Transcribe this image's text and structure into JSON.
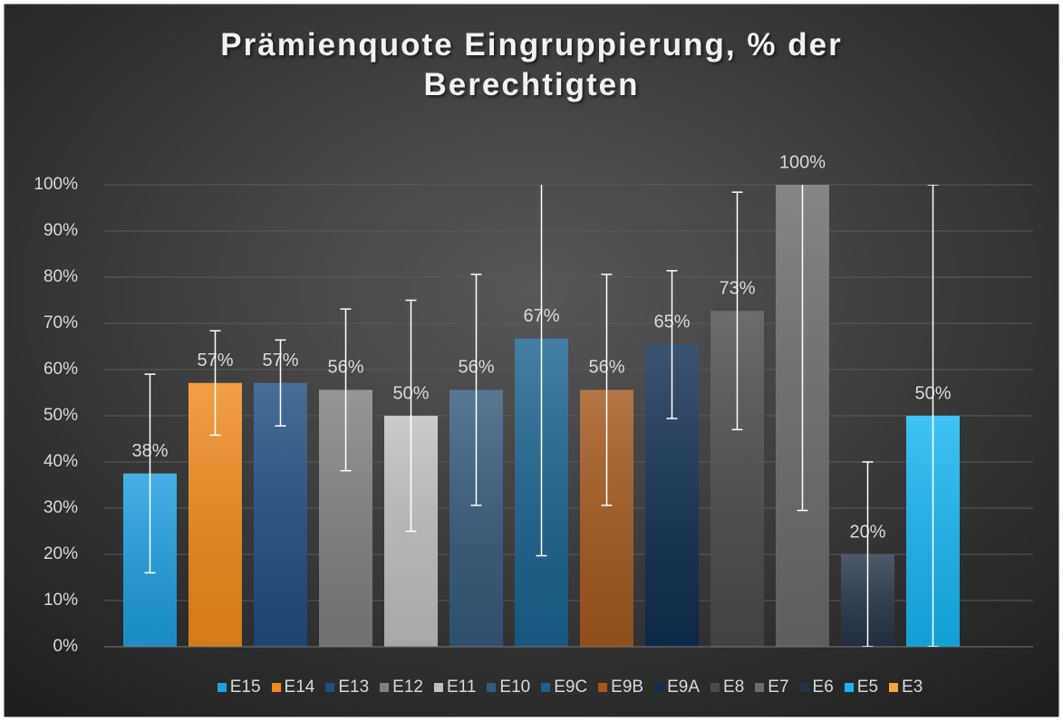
{
  "chart_data": {
    "type": "bar",
    "title": "Prämienquote Eingruppierung, % der Berechtigten",
    "series": [
      {
        "name": "E15",
        "color": "#1e9fe0",
        "values": [
          37.5
        ],
        "value_labels": [
          "38%"
        ],
        "errors": [
          21.5
        ]
      },
      {
        "name": "E14",
        "color": "#f08a1c",
        "values": [
          57.1
        ],
        "value_labels": [
          "57%"
        ],
        "errors": [
          11.3
        ]
      },
      {
        "name": "E13",
        "color": "#1f4e82",
        "values": [
          57.1
        ],
        "value_labels": [
          "57%"
        ],
        "errors": [
          9.3
        ]
      },
      {
        "name": "E12",
        "color": "#808080",
        "values": [
          55.6
        ],
        "value_labels": [
          "56%"
        ],
        "errors": [
          17.5
        ]
      },
      {
        "name": "E11",
        "color": "#bfbfbf",
        "values": [
          50
        ],
        "value_labels": [
          "50%"
        ],
        "errors": [
          25
        ]
      },
      {
        "name": "E10",
        "color": "#33597b",
        "values": [
          55.6
        ],
        "value_labels": [
          "56%"
        ],
        "errors": [
          25
        ]
      },
      {
        "name": "E9C",
        "color": "#1a628f",
        "values": [
          66.7
        ],
        "value_labels": [
          "67%"
        ],
        "errors": [
          47
        ]
      },
      {
        "name": "E9B",
        "color": "#a3581d",
        "values": [
          55.6
        ],
        "value_labels": [
          "56%"
        ],
        "errors": [
          25
        ]
      },
      {
        "name": "E9A",
        "color": "#0f2e52",
        "values": [
          65.4
        ],
        "value_labels": [
          "65%"
        ],
        "errors": [
          16
        ]
      },
      {
        "name": "E8",
        "color": "#4b4b4b",
        "values": [
          72.7
        ],
        "value_labels": [
          "73%"
        ],
        "errors": [
          25.7
        ]
      },
      {
        "name": "E7",
        "color": "#6b6b6b",
        "values": [
          100
        ],
        "value_labels": [
          "100%"
        ],
        "errors": [
          70.5
        ]
      },
      {
        "name": "E6",
        "color": "#253548",
        "values": [
          20
        ],
        "value_labels": [
          "20%"
        ],
        "errors": [
          20
        ]
      },
      {
        "name": "E5",
        "color": "#16b6f2",
        "values": [
          50
        ],
        "value_labels": [
          "50%"
        ],
        "errors": [
          50
        ]
      },
      {
        "name": "E3",
        "color": "#f5a53c",
        "values": [
          null
        ],
        "value_labels": [
          null
        ],
        "errors": [
          null
        ]
      }
    ],
    "ylim": [
      0,
      100
    ],
    "yticks": [
      {
        "value": 0,
        "label": "0%"
      },
      {
        "value": 10,
        "label": "10%"
      },
      {
        "value": 20,
        "label": "20%"
      },
      {
        "value": 30,
        "label": "30%"
      },
      {
        "value": 40,
        "label": "40%"
      },
      {
        "value": 50,
        "label": "50%"
      },
      {
        "value": 60,
        "label": "60%"
      },
      {
        "value": 70,
        "label": "70%"
      },
      {
        "value": 80,
        "label": "80%"
      },
      {
        "value": 90,
        "label": "90%"
      },
      {
        "value": 100,
        "label": "100%"
      }
    ],
    "grid": true,
    "legend": "bottom"
  }
}
